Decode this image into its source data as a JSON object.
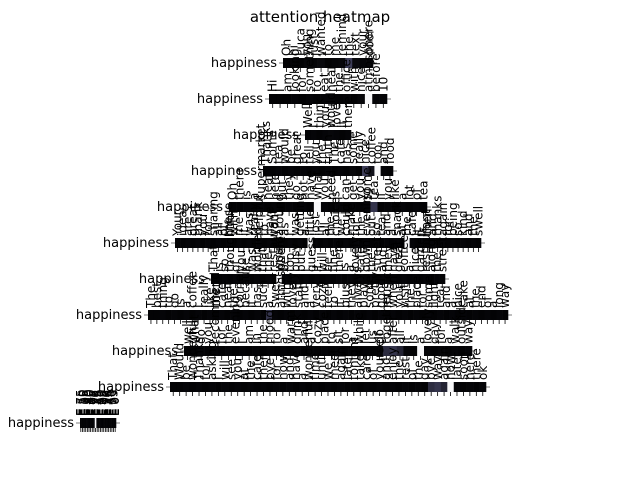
{
  "chart_data": {
    "type": "heatmap",
    "title": "attention heatmap",
    "xlabel": "",
    "ylabel": "",
    "colormap": [
      "#000000",
      "#3a3a55",
      "#7a7a95",
      "#ffffff"
    ],
    "grid": false,
    "rows": [
      {
        "label": "happiness",
        "tokens": [
          "Oh",
          "hi",
          "Luca",
          "you",
          "just",
          "wanted",
          "to",
          "me",
          "remind",
          "the",
          "text",
          "your",
          "door"
        ],
        "weights": [
          0.02,
          0.03,
          0.02,
          0.04,
          0.03,
          0.05,
          0.02,
          0.03,
          0.04,
          0.35,
          0.05,
          0.03,
          0.03
        ]
      },
      {
        "label": "happiness",
        "tokens": [
          "Hi",
          "I",
          "am",
          "looking",
          "for",
          "something",
          "to",
          "eat",
          "near",
          "the",
          "office",
          "with",
          "nice",
          "atmosphere",
          "before",
          "10"
        ],
        "weights": [
          0.02,
          0.02,
          0.02,
          0.03,
          0.02,
          0.03,
          0.02,
          0.03,
          0.03,
          0.02,
          0.03,
          0.02,
          0.04,
          0.98,
          0.03,
          0.02
        ]
      },
      {
        "label": "happiness",
        "tokens": [
          "Well",
          "I",
          "think",
          "you",
          "would",
          "love",
          "it",
          "there"
        ],
        "weights": [
          0.02,
          0.03,
          0.02,
          0.03,
          0.04,
          0.03,
          0.02,
          0.03
        ]
      },
      {
        "label": "happiness",
        "tokens": [
          "Thanks",
          "Some",
          "tea",
          "would",
          "be",
          "great",
          "to",
          "tell",
          "you",
          "the",
          "truth",
          "The",
          "cafe",
          "has",
          "some",
          "really",
          "nice",
          "coffee",
          "too",
          "and",
          "food"
        ],
        "weights": [
          0.02,
          0.02,
          0.03,
          0.02,
          0.03,
          0.02,
          0.03,
          0.02,
          0.03,
          0.02,
          0.03,
          0.02,
          0.03,
          0.02,
          0.04,
          0.02,
          0.35,
          0.1,
          0.98,
          0.03,
          0.02
        ]
      },
      {
        "label": "happiness",
        "tokens": [
          "Oh",
          "there",
          "is",
          "a",
          "supermarket",
          "near",
          "here",
          "but",
          "they",
          "do",
          "not",
          "have",
          "what",
          "you",
          "need",
          "I",
          "can",
          "get",
          "you",
          "some",
          "tea",
          "if",
          "you",
          "like",
          "a",
          "lot",
          "of",
          "tea"
        ],
        "weights": [
          0.02,
          0.02,
          0.03,
          0.02,
          0.03,
          0.02,
          0.03,
          0.02,
          0.03,
          0.02,
          0.03,
          0.02,
          0.98,
          0.03,
          0.02,
          0.03,
          0.02,
          0.03,
          0.02,
          0.03,
          0.3,
          0.02,
          0.03,
          0.02,
          0.03,
          0.02,
          0.03,
          0.02
        ]
      },
      {
        "label": "happiness",
        "tokens": [
          "Your",
          "ideas",
          "are",
          "great",
          "thank",
          "you",
          "for",
          "sharing",
          "all",
          "of",
          "these",
          "with",
          "me",
          "it",
          "was",
          "really",
          "helpful",
          "to",
          "have",
          "you",
          "around",
          "as",
          "I",
          "was",
          "getting",
          "a",
          "little",
          "lost",
          "in",
          "all",
          "the",
          "choices",
          "we",
          "could",
          "make",
          "for",
          "the",
          "evening",
          "out",
          "so",
          "tea",
          "and",
          "a",
          "snack",
          "at",
          "the",
          "cafe",
          "it",
          "is",
          "then",
          "and",
          "thanks",
          "again",
          "for",
          "being",
          "so",
          "kind",
          "and",
          "the",
          "swell"
        ],
        "weights": [
          0.02,
          0.02,
          0.03,
          0.02,
          0.03,
          0.02,
          0.03,
          0.02,
          0.03,
          0.02,
          0.03,
          0.02,
          0.03,
          0.02,
          0.03,
          0.02,
          0.03,
          0.02,
          0.03,
          0.02,
          0.03,
          0.02,
          0.03,
          0.02,
          0.03,
          0.02,
          0.98,
          0.03,
          0.02,
          0.03,
          0.02,
          0.03,
          0.02,
          0.03,
          0.02,
          0.03,
          0.02,
          0.03,
          0.02,
          0.03,
          0.02,
          0.03,
          0.02,
          0.03,
          0.02,
          0.98,
          0.03,
          0.02,
          0.03,
          0.02,
          0.03,
          0.02,
          0.03,
          0.02,
          0.03,
          0.02,
          0.03,
          0.02,
          0.03,
          0.02
        ]
      },
      {
        "label": "happiness",
        "tokens": [
          "That",
          "is",
          "so",
          "thoughtful",
          "of",
          "you",
          "I",
          "was",
          "worried",
          "that",
          "the",
          "restaurant",
          "would",
          "be",
          "too",
          "busy",
          "but",
          "I",
          "guess",
          "it",
          "will",
          "be",
          "fine",
          "there",
          "is",
          "a",
          "lovely",
          "cafe",
          "down",
          "the",
          "street",
          "and",
          "they",
          "have",
          "great",
          "coffee",
          "a",
          "nice",
          "garden",
          "restaurant",
          "along",
          "the",
          "street"
        ],
        "weights": [
          0.02,
          0.02,
          0.03,
          0.02,
          0.03,
          0.02,
          0.03,
          0.02,
          0.03,
          0.02,
          0.03,
          0.02,
          0.98,
          0.03,
          0.02,
          0.03,
          0.02,
          0.03,
          0.02,
          0.03,
          0.02,
          0.03,
          0.02,
          0.03,
          0.02,
          0.03,
          0.02,
          0.03,
          0.02,
          0.03,
          0.02,
          0.03,
          0.02,
          0.03,
          0.02,
          0.03,
          0.02,
          0.03,
          0.02,
          0.03,
          0.02,
          0.03,
          0.02
        ]
      },
      {
        "label": "happiness",
        "tokens": [
          "The",
          "best",
          "thing",
          "to",
          "do",
          "is",
          "a",
          "coffee",
          "I",
          "really",
          "like",
          "the",
          "cafe",
          "near",
          "the",
          "corner",
          "because",
          "it",
          "has",
          "such",
          "a",
          "sweet",
          "atmosphere",
          "with",
          "lovely",
          "staff",
          "and",
          "a",
          "very",
          "cozy",
          "feel",
          "to",
          "it",
          "plus",
          "they",
          "always",
          "play",
          "some",
          "pretty",
          "good",
          "music",
          "when",
          "you",
          "visit",
          "the",
          "place",
          "for",
          "some",
          "light",
          "tea",
          "and",
          "a",
          "nice",
          "cake",
          "at",
          "the",
          "end",
          "of",
          "a",
          "long",
          "way"
        ],
        "weights": [
          0.02,
          0.02,
          0.03,
          0.02,
          0.03,
          0.02,
          0.03,
          0.02,
          0.03,
          0.02,
          0.03,
          0.02,
          0.03,
          0.02,
          0.03,
          0.02,
          0.03,
          0.02,
          0.03,
          0.02,
          0.3,
          0.03,
          0.02,
          0.03,
          0.02,
          0.03,
          0.02,
          0.03,
          0.02,
          0.03,
          0.02,
          0.03,
          0.02,
          0.03,
          0.02,
          0.03,
          0.02,
          0.03,
          0.02,
          0.03,
          0.02,
          0.03,
          0.02,
          0.03,
          0.02,
          0.03,
          0.02,
          0.03,
          0.02,
          0.03,
          0.02,
          0.03,
          0.02,
          0.03,
          0.02,
          0.03,
          0.02,
          0.03,
          0.02,
          0.03,
          0.02
        ]
      },
      {
        "label": "happiness",
        "tokens": [
          "well",
          "what",
          "do",
          "you",
          "recommend",
          "for",
          "the",
          "evening",
          "I",
          "am",
          "in",
          "the",
          "mood",
          "for",
          "a",
          "warm",
          "drink",
          "and",
          "a",
          "cozy",
          "place",
          "to",
          "sit",
          "for",
          "a",
          "while",
          "let",
          "us",
          "go",
          "together",
          "after",
          "all",
          "it",
          "is",
          "a",
          "lovely",
          "day",
          "for",
          "a",
          "walk",
          "outside",
          "way"
        ],
        "weights": [
          0.02,
          0.02,
          0.03,
          0.02,
          0.03,
          0.02,
          0.03,
          0.02,
          0.03,
          0.02,
          0.03,
          0.02,
          0.03,
          0.02,
          0.03,
          0.02,
          0.03,
          0.02,
          0.03,
          0.02,
          0.03,
          0.02,
          0.03,
          0.02,
          0.03,
          0.02,
          0.03,
          0.02,
          0.03,
          0.25,
          0.3,
          0.2,
          0.03,
          0.02,
          0.98,
          0.03,
          0.02,
          0.03,
          0.02,
          0.03,
          0.02,
          0.03
        ]
      },
      {
        "label": "happiness",
        "tokens": [
          "That",
          "Would",
          "be",
          "wonderful",
          "Thanks",
          "for",
          "asking",
          "I",
          "will",
          "see",
          "you",
          "at",
          "the",
          "cafe",
          "then",
          "bye",
          "for",
          "now",
          "and",
          "have",
          "a",
          "wonderful",
          "time",
          "until",
          "we",
          "meet",
          "again",
          "later",
          "tonight",
          "take",
          "care",
          "of",
          "yourself",
          "and",
          "enjoy",
          "the",
          "rest",
          "of",
          "the",
          "day",
          "bye",
          "way",
          "again",
          "now",
          "later",
          "soon",
          "here",
          "there",
          "ok"
        ],
        "weights": [
          0.02,
          0.02,
          0.03,
          0.02,
          0.03,
          0.02,
          0.03,
          0.02,
          0.03,
          0.02,
          0.03,
          0.02,
          0.03,
          0.02,
          0.03,
          0.02,
          0.03,
          0.02,
          0.03,
          0.02,
          0.03,
          0.02,
          0.03,
          0.02,
          0.03,
          0.02,
          0.03,
          0.02,
          0.03,
          0.02,
          0.03,
          0.02,
          0.03,
          0.02,
          0.03,
          0.02,
          0.03,
          0.02,
          0.03,
          0.02,
          0.25,
          0.3,
          0.2,
          0.98,
          0.03,
          0.02,
          0.03,
          0.02,
          0.03
        ]
      },
      {
        "label": "happiness",
        "tokens": [
          "E 75",
          "E 50",
          "E 25",
          "E 0",
          "E 50",
          "E 40",
          "E 20",
          "E 0",
          "F 75",
          "F 50",
          "F 25",
          "E 75",
          "E 50",
          "E 25",
          "E 0",
          "F 75",
          "F 50",
          "F 25",
          "E 75",
          "E 50",
          "E 25",
          "E 0"
        ],
        "weights": [
          0.02,
          0.02,
          0.03,
          0.02,
          0.03,
          0.02,
          0.03,
          0.02,
          0.03,
          0.98,
          0.03,
          0.02,
          0.03,
          0.02,
          0.03,
          0.02,
          0.03,
          0.02,
          0.03,
          0.02,
          0.03,
          0.02
        ]
      }
    ]
  }
}
